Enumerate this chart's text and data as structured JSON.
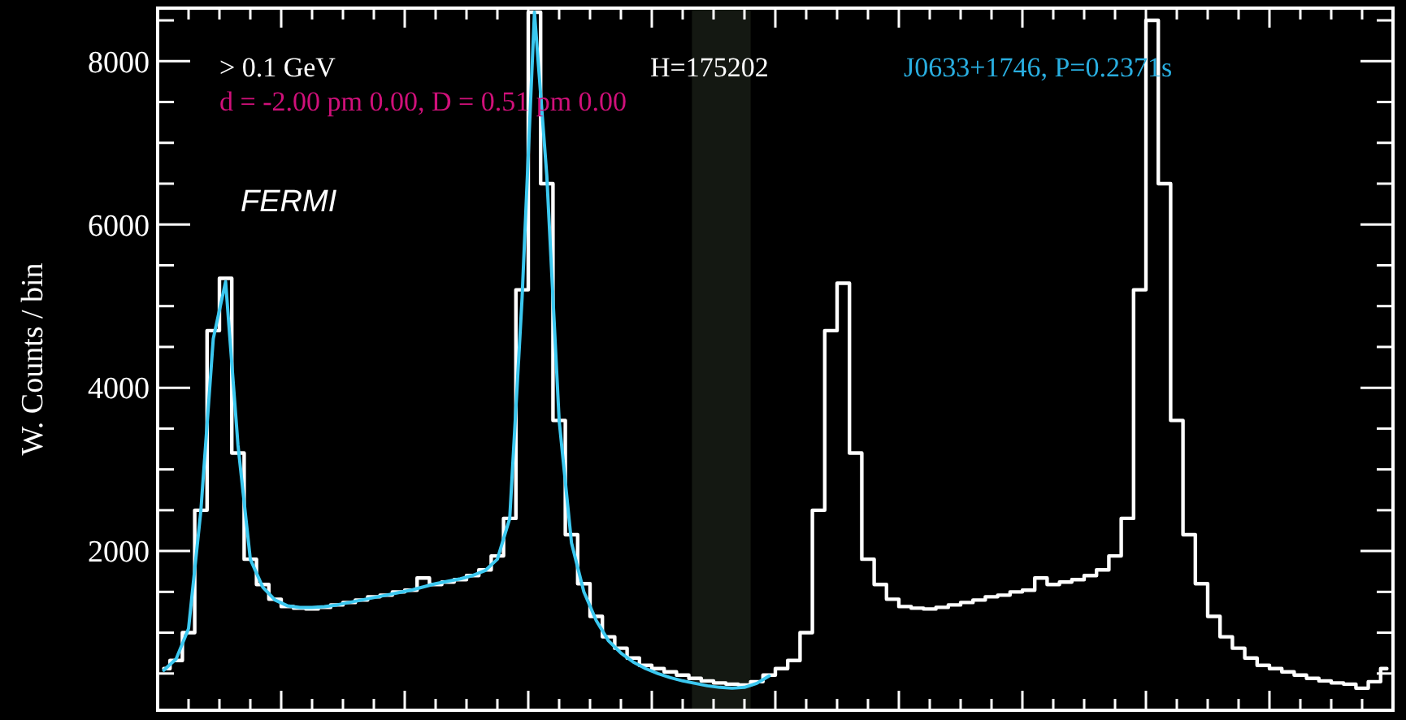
{
  "chart_data": {
    "type": "step",
    "ylabel": "W. Counts / bin",
    "annotations": [
      "> 0.1 GeV",
      "d = -2.00 pm 0.00,  D = 0.51 pm 0.00",
      "H=175202",
      "J0633+1746, P=0.2371s",
      "FERMI"
    ],
    "categories": [
      null,
      null,
      null,
      null,
      null,
      null,
      null,
      null,
      null,
      null,
      null,
      null,
      null,
      null,
      null,
      null,
      null,
      null,
      null,
      null,
      null,
      null,
      null,
      null,
      null,
      null,
      null,
      null,
      null,
      null,
      null,
      null,
      null,
      null,
      null,
      null,
      null,
      null,
      null,
      null,
      null,
      null,
      null,
      null,
      null,
      null,
      null,
      null,
      null,
      null,
      null,
      null,
      null,
      null,
      null,
      null,
      null,
      null,
      null,
      null,
      null,
      null,
      null,
      null,
      null,
      null,
      null,
      null,
      null,
      null,
      null,
      null,
      null,
      null,
      null,
      null,
      null,
      null,
      null,
      null,
      null,
      null,
      null,
      null,
      null,
      null,
      null,
      null,
      null,
      null,
      null,
      null,
      null,
      null,
      null,
      null,
      null,
      null,
      null,
      null
    ],
    "ylim": [
      50,
      8650
    ],
    "yticks": [
      {
        "value": 500,
        "label": null
      },
      {
        "value": 1000,
        "label": null
      },
      {
        "value": 1500,
        "label": null
      },
      2000,
      {
        "value": 2500,
        "label": null
      },
      {
        "value": 3000,
        "label": null
      },
      {
        "value": 3500,
        "label": null
      },
      4000,
      {
        "value": 4500,
        "label": null
      },
      {
        "value": 5000,
        "label": null
      },
      {
        "value": 5500,
        "label": null
      },
      6000,
      {
        "value": 6500,
        "label": null
      },
      {
        "value": 7000,
        "label": null
      },
      {
        "value": 7500,
        "label": null
      },
      8000,
      {
        "value": 8500,
        "label": null
      }
    ],
    "tick_labels": "y",
    "grid": false,
    "series": [
      {
        "color": "#ffffff",
        "values": [
          560,
          660,
          1000,
          2500,
          4700,
          5340,
          3200,
          1900,
          1590,
          1410,
          1320,
          1300,
          1290,
          1310,
          1340,
          1370,
          1400,
          1440,
          1460,
          1500,
          1520,
          1670,
          1590,
          1620,
          1650,
          1700,
          1770,
          1940,
          2400,
          5200,
          8600,
          6500,
          3600,
          2200,
          1600,
          1200,
          950,
          810,
          690,
          600,
          560,
          520,
          480,
          440,
          410,
          385,
          370,
          360,
          400,
          480,
          560,
          660,
          1000,
          2500,
          4700,
          5280,
          3200,
          1900,
          1590,
          1410,
          1320,
          1300,
          1290,
          1310,
          1340,
          1370,
          1400,
          1440,
          1460,
          1500,
          1520,
          1670,
          1590,
          1620,
          1650,
          1700,
          1770,
          1940,
          2400,
          5200,
          8500,
          6500,
          3600,
          2200,
          1600,
          1200,
          950,
          810,
          690,
          600,
          560,
          520,
          480,
          440,
          410,
          385,
          370,
          320,
          400,
          560
        ]
      },
      {
        "type": "line",
        "color": "#3bc8f0",
        "values": [
          540,
          680,
          1050,
          2500,
          4600,
          5300,
          3300,
          1900,
          1560,
          1400,
          1330,
          1310,
          1310,
          1320,
          1340,
          1370,
          1400,
          1430,
          1460,
          1490,
          1520,
          1560,
          1600,
          1630,
          1660,
          1700,
          1760,
          1900,
          2400,
          5100,
          8600,
          6600,
          3600,
          2100,
          1500,
          1150,
          900,
          750,
          640,
          560,
          500,
          450,
          410,
          380,
          350,
          330,
          320,
          330,
          380,
          470,
          null,
          null,
          null,
          null,
          null,
          null,
          null,
          null,
          null,
          null,
          null,
          null,
          null,
          null,
          null,
          null,
          null,
          null,
          null,
          null,
          null,
          null,
          null,
          null,
          null,
          null,
          null,
          null,
          null,
          null,
          null,
          null,
          null,
          null,
          null,
          null,
          null,
          null,
          null,
          null,
          null,
          null,
          null,
          null,
          null,
          null,
          null,
          null,
          null,
          null
        ]
      }
    ]
  }
}
